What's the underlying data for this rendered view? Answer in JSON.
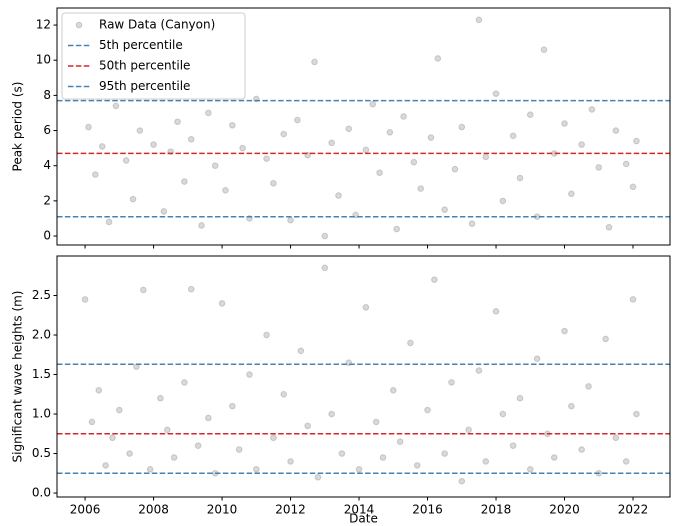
{
  "chart_data": [
    {
      "type": "scatter",
      "ylabel": "Peak period (s)",
      "xlim": [
        2005.18,
        2023.08
      ],
      "ylim": [
        -0.51,
        12.97
      ],
      "yticks": [
        0,
        2,
        4,
        6,
        8,
        10,
        12
      ],
      "legend": "upper left",
      "series": [
        {
          "name": "Raw Data (Canyon)",
          "color": "gray",
          "x": [
            2006.1,
            2006.3,
            2006.5,
            2006.7,
            2006.9,
            2007.2,
            2007.4,
            2007.6,
            2007.8,
            2008.0,
            2008.3,
            2008.5,
            2008.7,
            2008.9,
            2009.1,
            2009.4,
            2009.6,
            2009.8,
            2010.1,
            2010.3,
            2010.6,
            2010.8,
            2011.0,
            2011.3,
            2011.5,
            2011.8,
            2012.0,
            2012.2,
            2012.5,
            2012.7,
            2013.0,
            2013.2,
            2013.4,
            2013.7,
            2013.9,
            2014.2,
            2014.4,
            2014.6,
            2014.9,
            2015.1,
            2015.3,
            2015.6,
            2015.8,
            2016.1,
            2016.3,
            2016.5,
            2016.8,
            2017.0,
            2017.3,
            2017.5,
            2017.7,
            2018.0,
            2018.2,
            2018.5,
            2018.7,
            2019.0,
            2019.2,
            2019.4,
            2019.7,
            2020.0,
            2020.2,
            2020.5,
            2020.8,
            2021.0,
            2021.3,
            2021.5,
            2021.8,
            2022.0,
            2022.1
          ],
          "values": [
            6.2,
            3.5,
            5.1,
            0.8,
            7.4,
            4.3,
            2.1,
            6.0,
            8.6,
            5.2,
            1.4,
            4.8,
            6.5,
            3.1,
            5.5,
            0.6,
            7.0,
            4.0,
            2.6,
            6.3,
            5.0,
            1.0,
            7.8,
            4.4,
            3.0,
            5.8,
            0.9,
            6.6,
            4.6,
            9.9,
            0.0,
            5.3,
            2.3,
            6.1,
            1.2,
            4.9,
            7.5,
            3.6,
            5.9,
            0.4,
            6.8,
            4.2,
            2.7,
            5.6,
            10.1,
            1.5,
            3.8,
            6.2,
            0.7,
            12.3,
            4.5,
            8.1,
            2.0,
            5.7,
            3.3,
            6.9,
            1.1,
            10.6,
            4.7,
            6.4,
            2.4,
            5.2,
            7.2,
            3.9,
            0.5,
            6.0,
            4.1,
            2.8,
            5.4
          ]
        }
      ],
      "reference_lines": [
        {
          "name": "5th percentile",
          "value": 1.1,
          "color": "#4682b4"
        },
        {
          "name": "50th percentile",
          "value": 4.7,
          "color": "#d62728"
        },
        {
          "name": "95th percentile",
          "value": 7.7,
          "color": "#4682b4"
        }
      ]
    },
    {
      "type": "scatter",
      "ylabel": "Significant wave heights (m)",
      "xlabel": "Date",
      "xlim": [
        2005.18,
        2023.08
      ],
      "xticks": [
        2006,
        2008,
        2010,
        2012,
        2014,
        2016,
        2018,
        2020,
        2022
      ],
      "ylim": [
        -0.05,
        3.0
      ],
      "yticks": [
        {
          "value": 0,
          "label": "0.0"
        },
        0.5,
        {
          "value": 1,
          "label": "1.0"
        },
        1.5,
        {
          "value": 2,
          "label": "2.0"
        },
        2.5
      ],
      "series": [
        {
          "color": "gray",
          "x": [
            2006.0,
            2006.2,
            2006.4,
            2006.6,
            2006.8,
            2007.0,
            2007.3,
            2007.5,
            2007.7,
            2007.9,
            2008.2,
            2008.4,
            2008.6,
            2008.9,
            2009.1,
            2009.3,
            2009.6,
            2009.8,
            2010.0,
            2010.3,
            2010.5,
            2010.8,
            2011.0,
            2011.3,
            2011.5,
            2011.8,
            2012.0,
            2012.3,
            2012.5,
            2012.8,
            2013.0,
            2013.2,
            2013.5,
            2013.7,
            2014.0,
            2014.2,
            2014.5,
            2014.7,
            2015.0,
            2015.2,
            2015.5,
            2015.7,
            2016.0,
            2016.2,
            2016.5,
            2016.7,
            2017.0,
            2017.2,
            2017.5,
            2017.7,
            2018.0,
            2018.2,
            2018.5,
            2018.7,
            2019.0,
            2019.2,
            2019.5,
            2019.7,
            2020.0,
            2020.2,
            2020.5,
            2020.7,
            2021.0,
            2021.2,
            2021.5,
            2021.8,
            2022.0,
            2022.1
          ],
          "values": [
            2.45,
            0.9,
            1.3,
            0.35,
            0.7,
            1.05,
            0.5,
            1.6,
            2.57,
            0.3,
            1.2,
            0.8,
            0.45,
            1.4,
            2.58,
            0.6,
            0.95,
            0.25,
            2.4,
            1.1,
            0.55,
            1.5,
            0.3,
            2.0,
            0.7,
            1.25,
            0.4,
            1.8,
            0.85,
            0.2,
            2.85,
            1.0,
            0.5,
            1.65,
            0.3,
            2.35,
            0.9,
            0.45,
            1.3,
            0.65,
            1.9,
            0.35,
            1.05,
            2.7,
            0.5,
            1.4,
            0.15,
            0.8,
            1.55,
            0.4,
            2.3,
            1.0,
            0.6,
            1.2,
            0.3,
            1.7,
            0.75,
            0.45,
            2.05,
            1.1,
            0.55,
            1.35,
            0.25,
            1.95,
            0.7,
            0.4,
            2.45,
            1.0
          ]
        }
      ],
      "reference_lines": [
        {
          "value": 0.25,
          "color": "#4682b4"
        },
        {
          "value": 0.75,
          "color": "#d62728"
        },
        {
          "value": 1.63,
          "color": "#4682b4"
        }
      ]
    }
  ]
}
